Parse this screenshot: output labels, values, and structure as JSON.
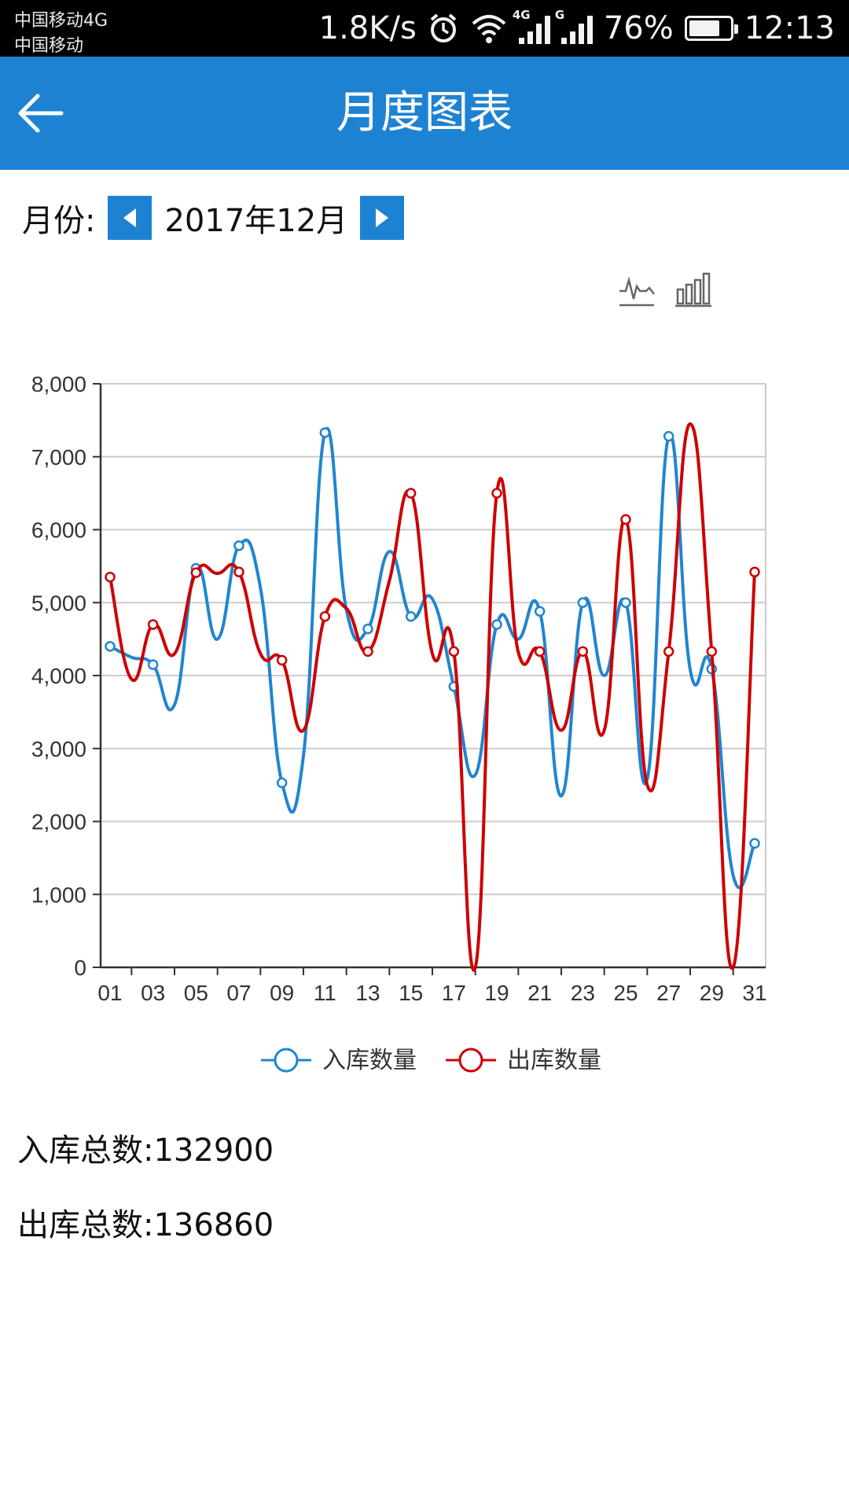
{
  "status_bar": {
    "carrier_1": "中国移动4G",
    "carrier_2": "中国移动",
    "net_speed": "1.8K/s",
    "sig1_tag": "4G",
    "sig2_tag": "G",
    "battery_text": "76%",
    "battery_level": 0.76,
    "time": "12:13"
  },
  "app_bar": {
    "title": "月度图表",
    "back_icon": "arrow-left-icon"
  },
  "month_selector": {
    "label": "月份:",
    "value": "2017年12月",
    "prev_icon": "triangle-left-icon",
    "next_icon": "triangle-right-icon"
  },
  "toolbox": {
    "line_icon": "line-chart-icon",
    "bar_icon": "bar-chart-icon"
  },
  "chart_data": {
    "type": "line",
    "smooth": true,
    "x": [
      "01",
      "02",
      "03",
      "04",
      "05",
      "06",
      "07",
      "08",
      "09",
      "10",
      "11",
      "12",
      "13",
      "14",
      "15",
      "16",
      "17",
      "18",
      "19",
      "20",
      "21",
      "22",
      "23",
      "24",
      "25",
      "26",
      "27",
      "28",
      "29",
      "30",
      "31"
    ],
    "x_tick_labels": [
      "01",
      "03",
      "05",
      "07",
      "09",
      "11",
      "13",
      "15",
      "17",
      "19",
      "21",
      "23",
      "25",
      "27",
      "29",
      "31"
    ],
    "y_tick_labels": [
      "0",
      "1,000",
      "2,000",
      "3,000",
      "4,000",
      "5,000",
      "6,000",
      "7,000",
      "8,000"
    ],
    "ylim": [
      0,
      8000
    ],
    "grid": true,
    "legend_position": "bottom-center",
    "series": [
      {
        "name": "入库数量",
        "color": "#2185d0",
        "values": [
          4400,
          4250,
          4150,
          3600,
          5470,
          4500,
          5780,
          5200,
          2530,
          2900,
          7330,
          4900,
          4640,
          5700,
          4810,
          5050,
          3850,
          2640,
          4700,
          4500,
          4880,
          2350,
          5000,
          4000,
          5000,
          2580,
          7280,
          4080,
          4090,
          1260,
          1700
        ]
      },
      {
        "name": "出库数量",
        "color": "#cc0000",
        "values": [
          5350,
          3950,
          4700,
          4300,
          5410,
          5400,
          5420,
          4300,
          4210,
          3250,
          4810,
          4920,
          4330,
          5300,
          6500,
          4300,
          4330,
          0,
          6500,
          4320,
          4330,
          3250,
          4330,
          3250,
          6140,
          2500,
          4330,
          7450,
          4330,
          0,
          5420
        ]
      }
    ]
  },
  "totals": {
    "in_total": "入库总数:132900",
    "out_total": "出库总数:136860"
  }
}
